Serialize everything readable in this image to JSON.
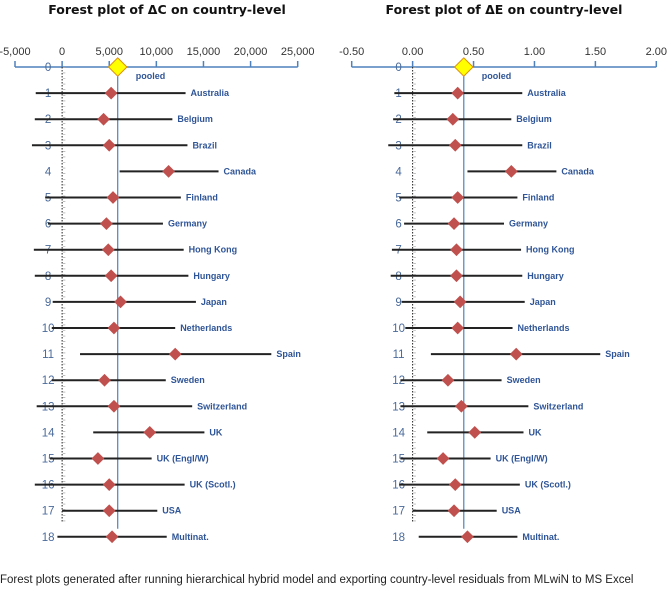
{
  "colors": {
    "axis": "#4f81bd",
    "diamond": "#c0504d",
    "pooled": "#ffff00",
    "pooled_border": "#e0900a",
    "ci": "#222222",
    "label": "#2f5597"
  },
  "chart_data": [
    {
      "type": "forest",
      "title": "Forest plot of ΔC on country-level",
      "xlim": [
        -5000,
        25000
      ],
      "ticks": [
        -5000,
        0,
        5000,
        10000,
        15000,
        20000,
        25000
      ],
      "tick_labels": [
        "-5,000",
        "0",
        "5,000",
        "10,000",
        "15,000",
        "20,000",
        "25,000"
      ],
      "pooled": {
        "row": "0",
        "label": "pooled",
        "value": 5900
      },
      "rows": [
        {
          "row": "1",
          "label": "Australia",
          "low": -2800,
          "est": 5200,
          "high": 13100
        },
        {
          "row": "2",
          "label": "Belgium",
          "low": -2900,
          "est": 4400,
          "high": 11700
        },
        {
          "row": "3",
          "label": "Brazil",
          "low": -3200,
          "est": 5000,
          "high": 13300
        },
        {
          "row": "4",
          "label": "Canada",
          "low": 6100,
          "est": 11300,
          "high": 16600
        },
        {
          "row": "5",
          "label": "Finland",
          "low": -1800,
          "est": 5400,
          "high": 12600
        },
        {
          "row": "6",
          "label": "Germany",
          "low": -1500,
          "est": 4700,
          "high": 10700
        },
        {
          "row": "7",
          "label": "Hong Kong",
          "low": -3000,
          "est": 4900,
          "high": 12900
        },
        {
          "row": "8",
          "label": "Hungary",
          "low": -2900,
          "est": 5200,
          "high": 13400
        },
        {
          "row": "9",
          "label": "Japan",
          "low": -1000,
          "est": 6200,
          "high": 14200
        },
        {
          "row": "10",
          "label": "Netherlands",
          "low": -1100,
          "est": 5500,
          "high": 12000
        },
        {
          "row": "11",
          "label": "Spain",
          "low": 1900,
          "est": 12000,
          "high": 22200
        },
        {
          "row": "12",
          "label": "Sweden",
          "low": -1100,
          "est": 4500,
          "high": 11000
        },
        {
          "row": "13",
          "label": "Switzerland",
          "low": -2700,
          "est": 5500,
          "high": 13800
        },
        {
          "row": "14",
          "label": "UK",
          "low": 3300,
          "est": 9300,
          "high": 15100
        },
        {
          "row": "15",
          "label": "UK (Engl/W)",
          "low": -1300,
          "est": 3800,
          "high": 9500
        },
        {
          "row": "16",
          "label": "UK (Scotl.)",
          "low": -2900,
          "est": 5000,
          "high": 13000
        },
        {
          "row": "17",
          "label": "USA",
          "low": 0,
          "est": 5000,
          "high": 10100
        },
        {
          "row": "18",
          "label": "Multinat.",
          "low": -500,
          "est": 5300,
          "high": 11100
        }
      ]
    },
    {
      "type": "forest",
      "title": "Forest plot of ΔE on country-level",
      "xlim": [
        -0.5,
        2.0
      ],
      "ticks": [
        -0.5,
        0,
        0.5,
        1.0,
        1.5,
        2.0
      ],
      "tick_labels": [
        "-0.50",
        "0.00",
        "0.50",
        "1.00",
        "1.50",
        "2.00"
      ],
      "pooled": {
        "row": "0",
        "label": "pooled",
        "value": 0.42
      },
      "rows": [
        {
          "row": "1",
          "label": "Australia",
          "low": -0.15,
          "est": 0.37,
          "high": 0.9
        },
        {
          "row": "2",
          "label": "Belgium",
          "low": -0.16,
          "est": 0.33,
          "high": 0.81
        },
        {
          "row": "3",
          "label": "Brazil",
          "low": -0.2,
          "est": 0.35,
          "high": 0.9
        },
        {
          "row": "4",
          "label": "Canada",
          "low": 0.45,
          "est": 0.81,
          "high": 1.18
        },
        {
          "row": "5",
          "label": "Finland",
          "low": -0.11,
          "est": 0.37,
          "high": 0.86
        },
        {
          "row": "6",
          "label": "Germany",
          "low": -0.07,
          "est": 0.34,
          "high": 0.75
        },
        {
          "row": "7",
          "label": "Hong Kong",
          "low": -0.17,
          "est": 0.36,
          "high": 0.89
        },
        {
          "row": "8",
          "label": "Hungary",
          "low": -0.18,
          "est": 0.36,
          "high": 0.9
        },
        {
          "row": "9",
          "label": "Japan",
          "low": -0.09,
          "est": 0.39,
          "high": 0.92
        },
        {
          "row": "10",
          "label": "Netherlands",
          "low": -0.06,
          "est": 0.37,
          "high": 0.82
        },
        {
          "row": "11",
          "label": "Spain",
          "low": 0.15,
          "est": 0.85,
          "high": 1.54
        },
        {
          "row": "12",
          "label": "Sweden",
          "low": -0.1,
          "est": 0.29,
          "high": 0.73
        },
        {
          "row": "13",
          "label": "Switzerland",
          "low": -0.1,
          "est": 0.4,
          "high": 0.95
        },
        {
          "row": "14",
          "label": "UK",
          "low": 0.12,
          "est": 0.51,
          "high": 0.91
        },
        {
          "row": "15",
          "label": "UK (Engl/W)",
          "low": -0.1,
          "est": 0.25,
          "high": 0.64
        },
        {
          "row": "16",
          "label": "UK (Scotl.)",
          "low": -0.11,
          "est": 0.35,
          "high": 0.88
        },
        {
          "row": "17",
          "label": "USA",
          "low": 0.0,
          "est": 0.34,
          "high": 0.69
        },
        {
          "row": "18",
          "label": "Multinat.",
          "low": 0.05,
          "est": 0.45,
          "high": 0.86
        }
      ]
    }
  ],
  "caption": "Forest plots generated after running hierarchical hybrid model and exporting country-level residuals from MLwiN to MS Excel"
}
